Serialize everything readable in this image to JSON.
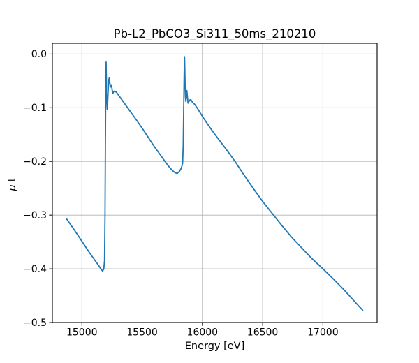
{
  "figure": {
    "background": "#ffffff"
  },
  "chart_data": {
    "type": "line",
    "title": "Pb-L2_PbCO3_Si311_50ms_210210",
    "xlabel": "Energy [eV]",
    "ylabel": "μ t",
    "xlim": [
      14755,
      17450
    ],
    "ylim": [
      -0.5,
      0.02
    ],
    "xticks": [
      15000,
      15500,
      16000,
      16500,
      17000
    ],
    "yticks": [
      0.0,
      -0.1,
      -0.2,
      -0.3,
      -0.4,
      -0.5
    ],
    "grid": true,
    "legend_position": "none",
    "colors": {
      "line": "#1f77b4",
      "grid": "#b0b0b0",
      "spine": "#000000",
      "text": "#000000"
    },
    "series": [
      {
        "name": "mu_t_spectrum",
        "x": [
          14870,
          14960,
          15060,
          15130,
          15158,
          15172,
          15182,
          15188,
          15192,
          15195,
          15198,
          15200,
          15201,
          15204,
          15207,
          15210,
          15214,
          15219,
          15224,
          15227,
          15231,
          15236,
          15241,
          15246,
          15252,
          15257,
          15263,
          15270,
          15278,
          15287,
          15295,
          15320,
          15360,
          15400,
          15450,
          15500,
          15550,
          15600,
          15650,
          15690,
          15720,
          15745,
          15770,
          15790,
          15810,
          15825,
          15836,
          15841,
          15845,
          15849,
          15852,
          15854,
          15857,
          15860,
          15863,
          15867,
          15871,
          15876,
          15881,
          15888,
          15896,
          15904,
          15912,
          15919,
          15935,
          15960,
          16000,
          16060,
          16120,
          16200,
          16271,
          16340,
          16420,
          16500,
          16580,
          16660,
          16740,
          16820,
          16900,
          17000,
          17080,
          17160,
          17240,
          17300,
          17330
        ],
        "y": [
          -0.306,
          -0.335,
          -0.369,
          -0.391,
          -0.4,
          -0.4045,
          -0.4,
          -0.385,
          -0.3,
          -0.17,
          -0.06,
          -0.022,
          -0.015,
          -0.055,
          -0.09,
          -0.1025,
          -0.089,
          -0.065,
          -0.0475,
          -0.0445,
          -0.052,
          -0.06,
          -0.0615,
          -0.0585,
          -0.068,
          -0.0735,
          -0.0705,
          -0.0693,
          -0.0698,
          -0.0712,
          -0.0738,
          -0.0815,
          -0.094,
          -0.1065,
          -0.122,
          -0.138,
          -0.155,
          -0.172,
          -0.1875,
          -0.2,
          -0.209,
          -0.2155,
          -0.2205,
          -0.2225,
          -0.2185,
          -0.2125,
          -0.2035,
          -0.17,
          -0.1,
          -0.035,
          -0.005,
          -0.025,
          -0.06,
          -0.082,
          -0.0885,
          -0.078,
          -0.068,
          -0.08,
          -0.0915,
          -0.0888,
          -0.0855,
          -0.085,
          -0.0878,
          -0.0903,
          -0.0933,
          -0.1015,
          -0.116,
          -0.136,
          -0.1545,
          -0.178,
          -0.2,
          -0.2235,
          -0.2495,
          -0.2745,
          -0.297,
          -0.3195,
          -0.341,
          -0.36,
          -0.379,
          -0.4,
          -0.4175,
          -0.4355,
          -0.455,
          -0.47,
          -0.477
        ]
      }
    ]
  }
}
